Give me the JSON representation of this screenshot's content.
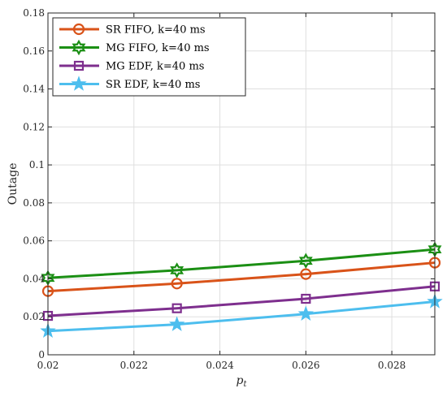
{
  "chart_data": {
    "type": "line",
    "xlabel": "p",
    "xlabel_sub": "t",
    "ylabel": "Outage",
    "xlim": [
      0.02,
      0.029
    ],
    "ylim": [
      0,
      0.18
    ],
    "xticks": [
      0.02,
      0.022,
      0.024,
      0.026,
      0.028
    ],
    "xtick_labels": [
      "0.02",
      "0.022",
      "0.024",
      "0.026",
      "0.028"
    ],
    "yticks": [
      0,
      0.02,
      0.04,
      0.06,
      0.08,
      0.1,
      0.12,
      0.14,
      0.16,
      0.18
    ],
    "ytick_labels": [
      "0",
      "0.02",
      "0.04",
      "0.06",
      "0.08",
      "0.1",
      "0.12",
      "0.14",
      "0.16",
      "0.18"
    ],
    "grid": true,
    "legend_position": "top-left",
    "x": [
      0.02,
      0.023,
      0.026,
      0.029
    ],
    "series": [
      {
        "name": "SR FIFO, k=40 ms",
        "color": "#D95319",
        "marker": "circle",
        "values": [
          0.0335,
          0.0375,
          0.0425,
          0.0485
        ]
      },
      {
        "name": "MG FIFO, k=40 ms",
        "color": "#1B8F14",
        "marker": "hexagram",
        "values": [
          0.0405,
          0.0445,
          0.0495,
          0.0555
        ]
      },
      {
        "name": "MG EDF, k=40 ms",
        "color": "#7E2F8E",
        "marker": "square",
        "values": [
          0.0205,
          0.0245,
          0.0295,
          0.036
        ]
      },
      {
        "name": "SR EDF, k=40 ms",
        "color": "#4DBEEE",
        "marker": "pentagram",
        "values": [
          0.0125,
          0.016,
          0.0215,
          0.028
        ]
      }
    ]
  }
}
